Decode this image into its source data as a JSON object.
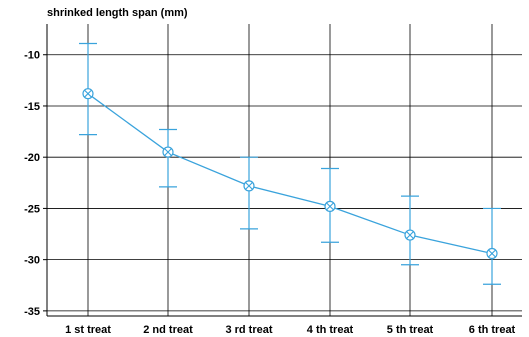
{
  "chart_data": {
    "type": "line",
    "title": "shrinked length span (mm)",
    "xlabel": "",
    "ylabel": "",
    "categories": [
      "1 st treat",
      "2 nd treat",
      "3 rd treat",
      "4 th treat",
      "5 th treat",
      "6 th treat"
    ],
    "series": [
      {
        "values": [
          -13.8,
          -19.5,
          -22.8,
          -24.8,
          -27.6,
          -29.4
        ],
        "upper": [
          -8.9,
          -17.3,
          -20.0,
          -21.1,
          -23.8,
          -25.0
        ],
        "lower": [
          -17.8,
          -22.9,
          -27.0,
          -28.3,
          -30.5,
          -32.4
        ]
      }
    ],
    "yticks": [
      -10,
      -15,
      -20,
      -25,
      -30,
      -35
    ],
    "ylim": [
      -35.5,
      -7
    ],
    "grid": true,
    "legend": "none",
    "colors": {
      "series": "#3aa3dc",
      "grid": "#000000"
    }
  }
}
